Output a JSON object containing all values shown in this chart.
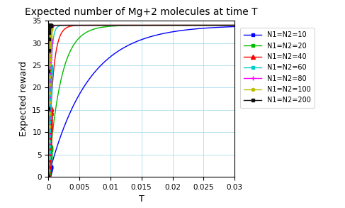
{
  "title": "Expected number of Mg+2 molecules at time T",
  "xlabel": "T",
  "ylabel": "Expected reward",
  "xlim": [
    0,
    0.03
  ],
  "ylim": [
    0,
    35
  ],
  "asymptote": 34,
  "series": [
    {
      "label": "N1=N2=10",
      "lam": 157,
      "color": "#0000FF",
      "marker": "s",
      "markersize": 3.5
    },
    {
      "label": "N1=N2=20",
      "lam": 500,
      "color": "#00BB00",
      "marker": "s",
      "markersize": 3.5
    },
    {
      "label": "N1=N2=40",
      "lam": 1400,
      "color": "#FF0000",
      "marker": "^",
      "markersize": 4
    },
    {
      "label": "N1=N2=60",
      "lam": 3000,
      "color": "#00CCCC",
      "marker": "s",
      "markersize": 3.5
    },
    {
      "label": "N1=N2=80",
      "lam": 5500,
      "color": "#FF00FF",
      "marker": "+",
      "markersize": 5
    },
    {
      "label": "N1=N2=100",
      "lam": 9000,
      "color": "#BBBB00",
      "marker": "o",
      "markersize": 3
    },
    {
      "label": "N1=N2=200",
      "lam": 40000,
      "color": "#111111",
      "marker": "s",
      "markersize": 3.5
    }
  ],
  "xticks": [
    0,
    0.005,
    0.01,
    0.015,
    0.02,
    0.025,
    0.03
  ],
  "yticks": [
    0,
    5,
    10,
    15,
    20,
    25,
    30,
    35
  ],
  "grid_color": "#AADDEE",
  "background_color": "#FFFFFF",
  "legend_fontsize": 7,
  "axis_label_fontsize": 9,
  "title_fontsize": 10,
  "n_markers": 30
}
